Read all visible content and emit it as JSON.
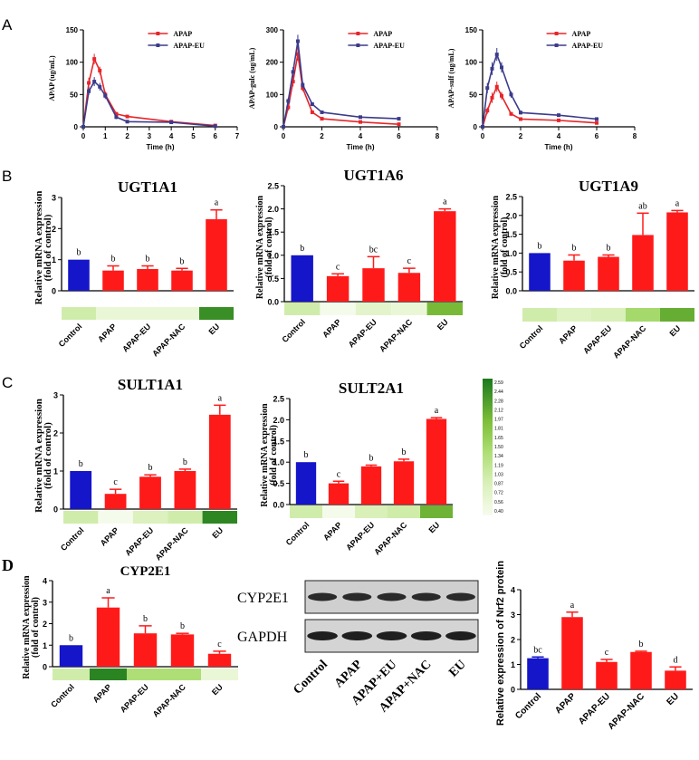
{
  "panel_labels": [
    "A",
    "B",
    "C",
    "D"
  ],
  "colors": {
    "apap_line": "#e8252a",
    "apapeu_line": "#3b3b8c",
    "bar_control": "#1515c9",
    "bar_treat": "#ff1a1a",
    "heat_low": "#f3fbe8",
    "heat_high": "#1e7b1e"
  },
  "heatmap_scale": {
    "ticks": [
      "2.59",
      "2.44",
      "2.28",
      "2.12",
      "1.97",
      "1.81",
      "1.65",
      "1.50",
      "1.34",
      "1.19",
      "1.03",
      "0.87",
      "0.72",
      "0.56",
      "0.40"
    ]
  },
  "western_blot": {
    "bands": [
      "CYP2E1",
      "GAPDH"
    ],
    "lanes": [
      "Control",
      "APAP",
      "APAP+EU",
      "APAP+NAC",
      "EU"
    ]
  },
  "chart_data": [
    {
      "id": "A1",
      "type": "line",
      "title": "",
      "xlabel": "Time (h)",
      "ylabel": "APAP (ug/mL)",
      "xlim": [
        0,
        7
      ],
      "ylim": [
        0,
        150
      ],
      "xticks": [
        "0",
        "1",
        "2",
        "3",
        "4",
        "5",
        "6",
        "7"
      ],
      "yticks": [
        "0",
        "50",
        "100",
        "150"
      ],
      "legend": [
        "APAP",
        "APAP-EU"
      ],
      "series": [
        {
          "name": "APAP",
          "x": [
            0,
            0.25,
            0.5,
            0.75,
            1,
            1.5,
            2,
            4,
            6
          ],
          "y": [
            0,
            68,
            105,
            87,
            50,
            20,
            16,
            8,
            2
          ],
          "err": [
            0,
            8,
            8,
            6,
            5,
            3,
            2,
            1,
            1
          ]
        },
        {
          "name": "APAP-EU",
          "x": [
            0,
            0.25,
            0.5,
            0.75,
            1,
            1.5,
            2,
            4,
            6
          ],
          "y": [
            0,
            55,
            70,
            62,
            48,
            15,
            8,
            7,
            1
          ],
          "err": [
            0,
            6,
            7,
            6,
            5,
            3,
            2,
            1,
            1
          ]
        }
      ]
    },
    {
      "id": "A2",
      "type": "line",
      "title": "",
      "xlabel": "Time (h)",
      "ylabel": "APAP-gulc (ug/mL)",
      "xlim": [
        0,
        8
      ],
      "ylim": [
        0,
        300
      ],
      "xticks": [
        "0",
        "2",
        "4",
        "6",
        "8"
      ],
      "yticks": [
        "0",
        "100",
        "200",
        "300"
      ],
      "legend": [
        "APAP",
        "APAP-EU"
      ],
      "series": [
        {
          "name": "APAP",
          "x": [
            0,
            0.25,
            0.5,
            0.75,
            1,
            1.5,
            2,
            4,
            6
          ],
          "y": [
            0,
            60,
            140,
            225,
            120,
            45,
            25,
            15,
            8
          ],
          "err": [
            0,
            10,
            15,
            20,
            10,
            5,
            3,
            2,
            1
          ]
        },
        {
          "name": "APAP-EU",
          "x": [
            0,
            0.25,
            0.5,
            0.75,
            1,
            1.5,
            2,
            4,
            6
          ],
          "y": [
            0,
            80,
            170,
            265,
            130,
            70,
            45,
            30,
            25
          ],
          "err": [
            0,
            10,
            15,
            20,
            10,
            6,
            4,
            3,
            2
          ]
        }
      ]
    },
    {
      "id": "A3",
      "type": "line",
      "title": "",
      "xlabel": "Time (h)",
      "ylabel": "APAP-sulf (ug/mL)",
      "xlim": [
        0,
        8
      ],
      "ylim": [
        0,
        150
      ],
      "xticks": [
        "0",
        "2",
        "4",
        "6",
        "8"
      ],
      "yticks": [
        "0",
        "50",
        "100",
        "150"
      ],
      "legend": [
        "APAP",
        "APAP-EU"
      ],
      "series": [
        {
          "name": "APAP",
          "x": [
            0,
            0.25,
            0.5,
            0.75,
            1,
            1.5,
            2,
            4,
            6
          ],
          "y": [
            0,
            25,
            45,
            62,
            48,
            20,
            12,
            10,
            6
          ],
          "err": [
            0,
            5,
            8,
            8,
            6,
            3,
            2,
            1,
            1
          ]
        },
        {
          "name": "APAP-EU",
          "x": [
            0,
            0.25,
            0.5,
            0.75,
            1,
            1.5,
            2,
            4,
            6
          ],
          "y": [
            0,
            60,
            90,
            112,
            92,
            50,
            22,
            18,
            12
          ],
          "err": [
            0,
            8,
            10,
            10,
            8,
            5,
            3,
            2,
            2
          ]
        }
      ]
    },
    {
      "id": "B1",
      "type": "bar",
      "title": "UGT1A1",
      "ylabel": "Relative mRNA expression",
      "ylabel2": "(fold of control)",
      "categories": [
        "Control",
        "APAP",
        "APAP-EU",
        "APAP-NAC",
        "EU"
      ],
      "values": [
        1.0,
        0.65,
        0.7,
        0.65,
        2.3
      ],
      "err": [
        0,
        0.15,
        0.1,
        0.07,
        0.3
      ],
      "letters": [
        "b",
        "b",
        "b",
        "b",
        "a"
      ],
      "ylim": [
        0,
        3
      ],
      "yticks": [
        "0",
        "1",
        "2",
        "3"
      ],
      "heat": [
        1.0,
        0.6,
        0.6,
        0.6,
        2.4
      ]
    },
    {
      "id": "B2",
      "type": "bar",
      "title": "UGT1A6",
      "ylabel": "Relative mRNA expression",
      "ylabel2": "(fold of control)",
      "categories": [
        "Control",
        "APAP",
        "APAP-EU",
        "APAP-NAC",
        "EU"
      ],
      "values": [
        1.0,
        0.55,
        0.72,
        0.62,
        1.95
      ],
      "err": [
        0,
        0.05,
        0.25,
        0.1,
        0.05
      ],
      "letters": [
        "b",
        "c",
        "bc",
        "c",
        "a"
      ],
      "ylim": [
        0,
        2.5
      ],
      "yticks": [
        "0.0",
        "0.5",
        "1.0",
        "1.5",
        "2.0",
        "2.5"
      ],
      "heat": [
        1.0,
        0.4,
        0.72,
        0.6,
        1.95
      ]
    },
    {
      "id": "B3",
      "type": "bar",
      "title": "UGT1A9",
      "ylabel": "Relative mRNA expression",
      "ylabel2": "(fold of control)",
      "categories": [
        "Control",
        "APAP",
        "APAP-EU",
        "APAP-NAC",
        "EU"
      ],
      "values": [
        1.0,
        0.8,
        0.9,
        1.48,
        2.08
      ],
      "err": [
        0,
        0.15,
        0.05,
        0.58,
        0.05
      ],
      "letters": [
        "b",
        "b",
        "b",
        "ab",
        "a"
      ],
      "ylim": [
        0,
        2.5
      ],
      "yticks": [
        "0.0",
        "0.5",
        "1.0",
        "1.5",
        "2.0",
        "2.5"
      ],
      "heat": [
        1.0,
        0.8,
        0.9,
        1.48,
        2.08
      ]
    },
    {
      "id": "C1",
      "type": "bar",
      "title": "SULT1A1",
      "ylabel": "Relative mRNA expression",
      "ylabel2": "(fold of control)",
      "categories": [
        "Control",
        "APAP",
        "APAP-EU",
        "APAP-NAC",
        "EU"
      ],
      "values": [
        1.0,
        0.4,
        0.85,
        1.0,
        2.48
      ],
      "err": [
        0,
        0.12,
        0.05,
        0.05,
        0.25
      ],
      "letters": [
        "b",
        "c",
        "b",
        "b",
        "a"
      ],
      "ylim": [
        0,
        3
      ],
      "yticks": [
        "0",
        "1",
        "2",
        "3"
      ],
      "heat": [
        1.0,
        0.4,
        0.85,
        1.0,
        2.48
      ]
    },
    {
      "id": "C2",
      "type": "bar",
      "title": "SULT2A1",
      "ylabel": "Relative mRNA expression",
      "ylabel2": "(fold of control)",
      "categories": [
        "Control",
        "APAP",
        "APAP-EU",
        "APAP-NAC",
        "EU"
      ],
      "values": [
        1.0,
        0.5,
        0.9,
        1.02,
        2.02
      ],
      "err": [
        0,
        0.05,
        0.03,
        0.05,
        0.03
      ],
      "letters": [
        "b",
        "c",
        "b",
        "b",
        "a"
      ],
      "ylim": [
        0,
        2.5
      ],
      "yticks": [
        "0.0",
        "0.5",
        "1.0",
        "1.5",
        "2.0",
        "2.5"
      ],
      "heat": [
        1.0,
        0.4,
        0.9,
        1.02,
        2.02
      ]
    },
    {
      "id": "D1",
      "type": "bar",
      "title": "CYP2E1",
      "ylabel": "Relative mRNA expression",
      "ylabel2": "(fold of control)",
      "categories": [
        "Control",
        "APAP",
        "APAP-EU",
        "APAP-NAC",
        "EU"
      ],
      "values": [
        1.0,
        2.75,
        1.55,
        1.5,
        0.6
      ],
      "err": [
        0,
        0.45,
        0.35,
        0.05,
        0.12
      ],
      "letters": [
        "b",
        "a",
        "b",
        "b",
        "c"
      ],
      "ylim": [
        0,
        4
      ],
      "yticks": [
        "0",
        "1",
        "2",
        "3",
        "4"
      ],
      "heat": [
        1.0,
        2.5,
        1.4,
        1.4,
        0.6
      ]
    },
    {
      "id": "D2",
      "type": "bar",
      "title": "",
      "ylabel": "Relative expression of Nrf2 protein",
      "ylabel2": "",
      "categories": [
        "Control",
        "APAP",
        "APAP-EU",
        "APAP-NAC",
        "EU"
      ],
      "values": [
        1.25,
        2.9,
        1.1,
        1.5,
        0.75
      ],
      "err": [
        0.05,
        0.2,
        0.1,
        0.03,
        0.15
      ],
      "letters": [
        "bc",
        "a",
        "c",
        "b",
        "d"
      ],
      "ylim": [
        0,
        4
      ],
      "yticks": [
        "0",
        "1",
        "2",
        "3",
        "4"
      ],
      "heat": null
    }
  ]
}
